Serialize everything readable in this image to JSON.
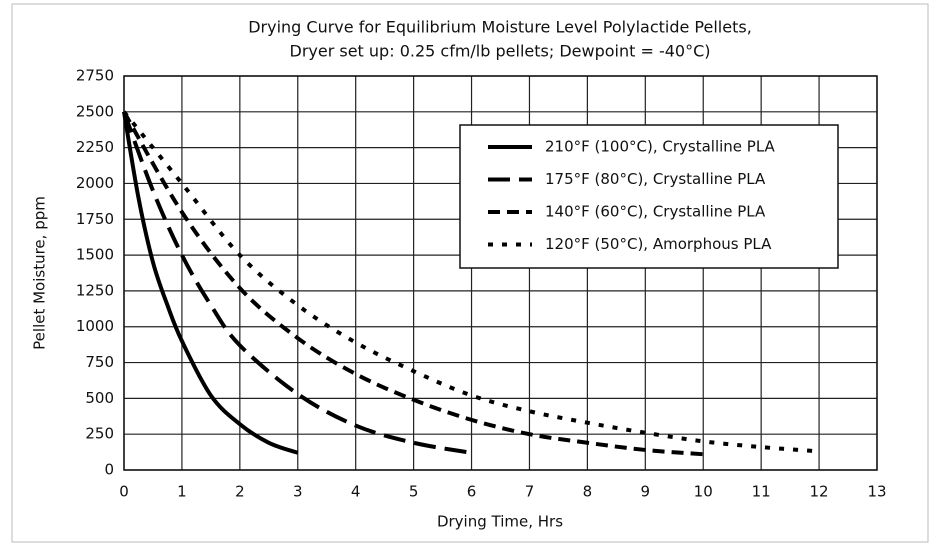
{
  "chart_data": {
    "type": "line",
    "title": "Drying Curve for Equilibrium Moisture Level Polylactide Pellets,",
    "subtitle": "Dryer set up: 0.25 cfm/lb pellets; Dewpoint = -40°C)",
    "x_label": "Drying Time, Hrs",
    "y_label": "Pellet Moisture, ppm",
    "xlim": [
      0,
      13
    ],
    "ylim": [
      0,
      2750
    ],
    "xticks": [
      0,
      1,
      2,
      3,
      4,
      5,
      6,
      7,
      8,
      9,
      10,
      11,
      12,
      13
    ],
    "yticks": [
      0,
      250,
      500,
      750,
      1000,
      1250,
      1500,
      1750,
      2000,
      2250,
      2500,
      2750
    ],
    "grid": true,
    "legend": "upper right",
    "series": [
      {
        "name": "210°F (100°C), Crystalline PLA",
        "color": "#000000",
        "line_style": "solid",
        "x": [
          0,
          0.25,
          0.5,
          0.75,
          1,
          1.5,
          2,
          2.5,
          3
        ],
        "values": [
          2500,
          1900,
          1450,
          1150,
          900,
          520,
          320,
          190,
          120
        ]
      },
      {
        "name": "175°F (80°C), Crystalline PLA",
        "color": "#000000",
        "line_style": "long-dash",
        "x": [
          0,
          0.5,
          1,
          1.5,
          2,
          3,
          4,
          5,
          6
        ],
        "values": [
          2500,
          1950,
          1500,
          1150,
          870,
          530,
          310,
          190,
          120
        ]
      },
      {
        "name": "140°F (60°C), Crystalline PLA",
        "color": "#000000",
        "line_style": "dash",
        "x": [
          0,
          1,
          2,
          3,
          4,
          5,
          6,
          7,
          8,
          9,
          10
        ],
        "values": [
          2500,
          1800,
          1270,
          920,
          670,
          490,
          350,
          250,
          190,
          140,
          110
        ]
      },
      {
        "name": "120°F (50°C),  Amorphous PLA",
        "color": "#000000",
        "line_style": "dot",
        "x": [
          0,
          1,
          2,
          3,
          4,
          5,
          6,
          7,
          8,
          9,
          10,
          11,
          12
        ],
        "values": [
          2500,
          2000,
          1500,
          1150,
          890,
          690,
          520,
          410,
          330,
          260,
          200,
          160,
          130
        ]
      }
    ]
  }
}
